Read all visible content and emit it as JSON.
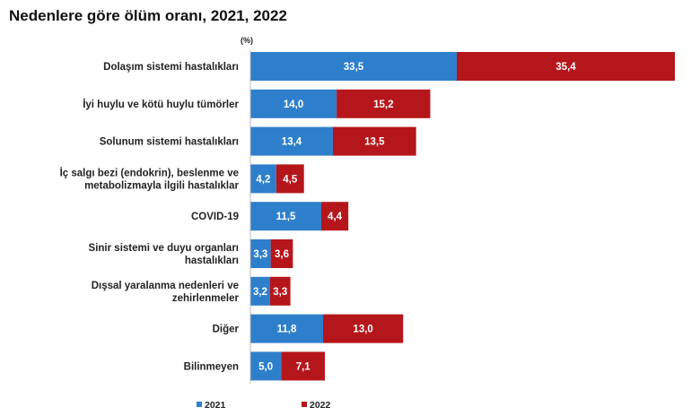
{
  "chart_data": {
    "type": "bar",
    "orientation": "horizontal",
    "stacked": true,
    "title": "Nedenlere göre ölüm oranı, 2021, 2022",
    "unit": "(%)",
    "categories": [
      [
        "Dolaşım sistemi hastalıkları"
      ],
      [
        "İyi huylu ve kötü huylu tümörler"
      ],
      [
        "Solunum sistemi hastalıkları"
      ],
      [
        "İç salgı bezi (endokrin), beslenme ve",
        "metabolizmayla ilgili hastalıklar"
      ],
      [
        "COVID-19"
      ],
      [
        "Sinir sistemi ve duyu organları",
        "hastalıkları"
      ],
      [
        "Dışsal yaralanma nedenleri ve",
        "zehirlenmeler"
      ],
      [
        "Diğer"
      ],
      [
        "Bilinmeyen"
      ]
    ],
    "series": [
      {
        "name": "2021",
        "color": "#2e7fcb",
        "values": [
          33.5,
          14.0,
          13.4,
          4.2,
          11.5,
          3.3,
          3.2,
          11.8,
          5.0
        ]
      },
      {
        "name": "2022",
        "color": "#b5161b",
        "values": [
          35.4,
          15.2,
          13.5,
          4.5,
          4.4,
          3.6,
          3.3,
          13.0,
          7.1
        ]
      }
    ],
    "decimal_separator": ",",
    "legend": "bottom",
    "grid": false
  }
}
